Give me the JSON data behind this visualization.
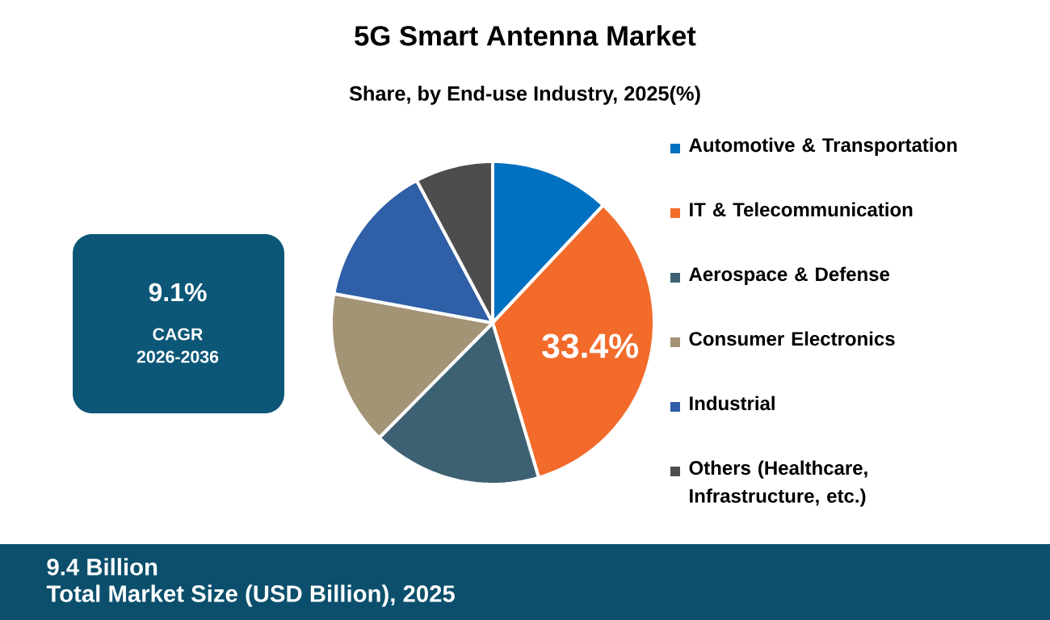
{
  "chart_data": {
    "type": "pie",
    "title": "5G Smart Antenna Market",
    "subtitle": "Share, by End-use Industry, 2025(%)",
    "categories": [
      "Automotive & Transportation",
      "IT & Telecommunication",
      "Aerospace & Defense",
      "Consumer Electronics",
      "Industrial",
      "Others (Healthcare, Infrastructure, etc.)"
    ],
    "values": [
      12,
      33.4,
      17,
      15.5,
      14.3,
      7.8
    ],
    "colors": [
      "#0070c0",
      "#f26b2b",
      "#3d6172",
      "#a39476",
      "#2f5fa6",
      "#4d4d4d"
    ],
    "value_labels": [
      null,
      "33.4%",
      null,
      null,
      null,
      null
    ],
    "legend": "right",
    "annotations": [
      "9.1%",
      "CAGR",
      "2026-2036",
      "9.4 Billion",
      "Total Market Size (USD Billion), 2025"
    ]
  }
}
